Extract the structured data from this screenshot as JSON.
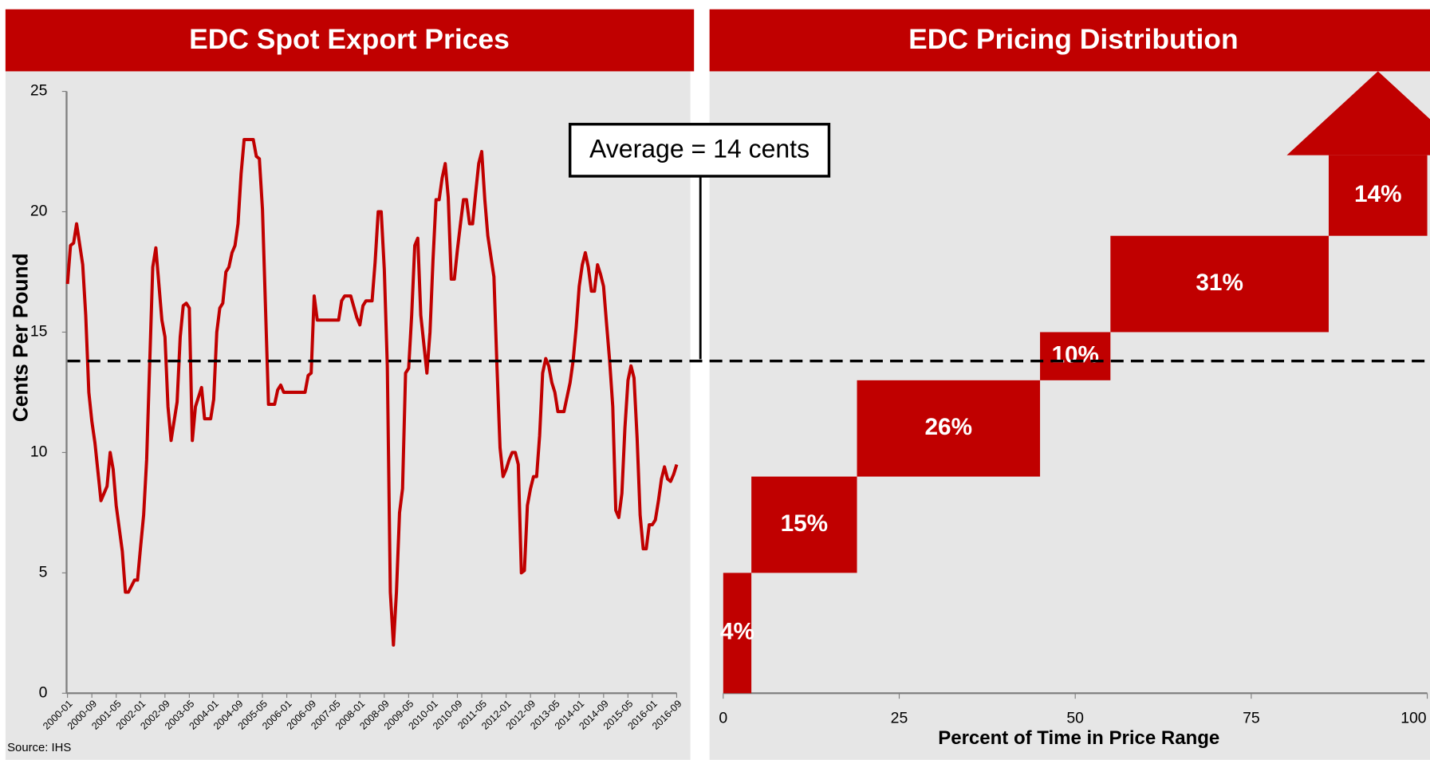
{
  "chart_data": [
    {
      "type": "line",
      "title": "EDC Spot Export Prices",
      "ylabel": "Cents Per Pound",
      "source": "Source: IHS",
      "color": "#c00000",
      "annotation": "Average = 14 cents",
      "average": 13.8,
      "x": [
        "2000-01",
        "2000-02",
        "2000-03",
        "2000-04",
        "2000-06",
        "2000-07",
        "2000-08",
        "2000-09",
        "2000-10",
        "2000-12",
        "2001-02",
        "2001-03",
        "2001-04",
        "2001-05",
        "2001-07",
        "2001-08",
        "2001-09",
        "2001-11",
        "2001-12",
        "2002-01",
        "2002-02",
        "2002-03",
        "2002-05",
        "2002-06",
        "2002-08",
        "2002-09",
        "2002-10",
        "2002-11",
        "2003-01",
        "2003-02",
        "2003-03",
        "2003-04",
        "2003-05",
        "2003-06",
        "2003-07",
        "2003-09",
        "2003-10",
        "2003-12",
        "2004-01",
        "2004-02",
        "2004-03",
        "2004-04",
        "2004-05",
        "2004-06",
        "2004-07",
        "2004-08",
        "2004-09",
        "2004-10",
        "2004-11",
        "2005-02",
        "2005-03",
        "2005-04",
        "2005-05",
        "2005-07",
        "2005-09",
        "2005-10",
        "2005-11",
        "2005-12",
        "2006-07",
        "2006-08",
        "2006-09",
        "2006-10",
        "2006-11",
        "2007-06",
        "2007-07",
        "2007-08",
        "2007-10",
        "2007-12",
        "2008-01",
        "2008-02",
        "2008-03",
        "2008-05",
        "2008-06",
        "2008-07",
        "2008-08",
        "2008-09",
        "2008-10",
        "2008-11",
        "2008-12",
        "2009-01",
        "2009-02",
        "2009-03",
        "2009-04",
        "2009-05",
        "2009-06",
        "2009-07",
        "2009-08",
        "2009-09",
        "2009-11",
        "2009-12",
        "2010-01",
        "2010-02",
        "2010-03",
        "2010-04",
        "2010-05",
        "2010-06",
        "2010-07",
        "2010-08",
        "2010-09",
        "2010-10",
        "2010-11",
        "2010-12",
        "2011-01",
        "2011-02",
        "2011-03",
        "2011-04",
        "2011-05",
        "2011-06",
        "2011-07",
        "2011-09",
        "2011-10",
        "2011-11",
        "2011-12",
        "2012-01",
        "2012-02",
        "2012-03",
        "2012-04",
        "2012-05",
        "2012-06",
        "2012-07",
        "2012-08",
        "2012-09",
        "2012-10",
        "2012-11",
        "2012-12",
        "2013-01",
        "2013-02",
        "2013-03",
        "2013-04",
        "2013-05",
        "2013-06",
        "2013-08",
        "2013-10",
        "2013-11",
        "2013-12",
        "2014-01",
        "2014-02",
        "2014-03",
        "2014-04",
        "2014-05",
        "2014-06",
        "2014-07",
        "2014-08",
        "2014-09",
        "2014-10",
        "2014-11",
        "2014-12",
        "2015-01",
        "2015-02",
        "2015-03",
        "2015-04",
        "2015-05",
        "2015-06",
        "2015-07",
        "2015-08",
        "2015-09",
        "2015-10",
        "2015-11",
        "2015-12",
        "2016-01",
        "2016-02",
        "2016-03",
        "2016-04",
        "2016-05",
        "2016-06",
        "2016-07",
        "2016-08",
        "2016-09"
      ],
      "values": [
        17.0,
        18.6,
        18.7,
        19.5,
        17.8,
        15.7,
        12.5,
        11.3,
        10.4,
        8.0,
        8.6,
        10.0,
        9.3,
        7.8,
        5.9,
        4.2,
        4.2,
        4.7,
        4.7,
        6.1,
        7.4,
        9.7,
        17.7,
        18.5,
        15.5,
        14.8,
        11.9,
        10.5,
        12.1,
        14.8,
        16.1,
        16.2,
        16.0,
        10.5,
        11.9,
        12.7,
        11.4,
        11.4,
        12.2,
        15.0,
        16.0,
        16.2,
        17.5,
        17.7,
        18.3,
        18.6,
        19.5,
        21.6,
        23.0,
        23.0,
        22.3,
        22.2,
        20.1,
        12.0,
        12.0,
        12.6,
        12.8,
        12.5,
        12.5,
        13.2,
        13.3,
        16.5,
        15.5,
        15.5,
        16.3,
        16.5,
        16.5,
        15.6,
        15.3,
        16.1,
        16.3,
        16.3,
        17.9,
        20.0,
        20.0,
        17.6,
        13.6,
        4.2,
        2.0,
        4.2,
        7.5,
        8.5,
        13.3,
        13.5,
        15.7,
        18.6,
        18.9,
        15.7,
        13.3,
        15.0,
        18.0,
        20.5,
        20.5,
        21.4,
        22.0,
        20.6,
        17.2,
        17.2,
        18.4,
        19.5,
        20.5,
        20.5,
        19.5,
        19.5,
        20.8,
        22.0,
        22.5,
        20.5,
        19.0,
        17.3,
        13.6,
        10.2,
        9.0,
        9.3,
        9.7,
        10.0,
        10.0,
        9.5,
        5.0,
        5.1,
        7.8,
        8.5,
        9.0,
        9.0,
        10.7,
        13.3,
        13.9,
        13.6,
        12.9,
        12.5,
        11.7,
        11.7,
        12.9,
        13.8,
        15.2,
        16.9,
        17.8,
        18.3,
        17.7,
        16.7,
        16.7,
        17.8,
        17.4,
        16.9,
        15.3,
        13.8,
        11.9,
        7.6,
        7.3,
        8.3,
        11.0,
        13.0,
        13.6,
        13.1,
        10.6,
        7.4,
        6.0,
        6.0,
        7.0,
        7.0,
        7.2,
        8.0,
        8.9,
        9.4,
        8.9,
        8.8,
        9.1,
        9.5
      ],
      "xlim": [
        "2000-01",
        "2016-09"
      ],
      "xticks": [
        "2000-01",
        "2000-09",
        "2001-05",
        "2002-01",
        "2002-09",
        "2003-05",
        "2004-01",
        "2004-09",
        "2005-05",
        "2006-01",
        "2006-09",
        "2007-05",
        "2008-01",
        "2008-09",
        "2009-05",
        "2010-01",
        "2010-09",
        "2011-05",
        "2012-01",
        "2012-09",
        "2013-05",
        "2014-01",
        "2014-09",
        "2015-05",
        "2016-01",
        "2016-09"
      ],
      "ylim": [
        0,
        25
      ],
      "yticks": [
        0,
        5,
        10,
        15,
        20,
        25
      ]
    },
    {
      "type": "range-bar",
      "title": "EDC Pricing Distribution",
      "xlabel": "Percent of Time in Price Range",
      "color": "#c00000",
      "values": [
        4,
        15,
        26,
        10,
        31,
        14
      ],
      "value_labels": [
        "4%",
        "15%",
        "26%",
        "10%",
        "31%",
        "14%"
      ],
      "lows": [
        0,
        5,
        9,
        13,
        15,
        19
      ],
      "highs": [
        5,
        9,
        13,
        15,
        19,
        null
      ],
      "xlim": [
        0,
        100
      ],
      "xticks": [
        0,
        25,
        50,
        75,
        100
      ],
      "ylim": [
        0,
        25
      ]
    }
  ]
}
